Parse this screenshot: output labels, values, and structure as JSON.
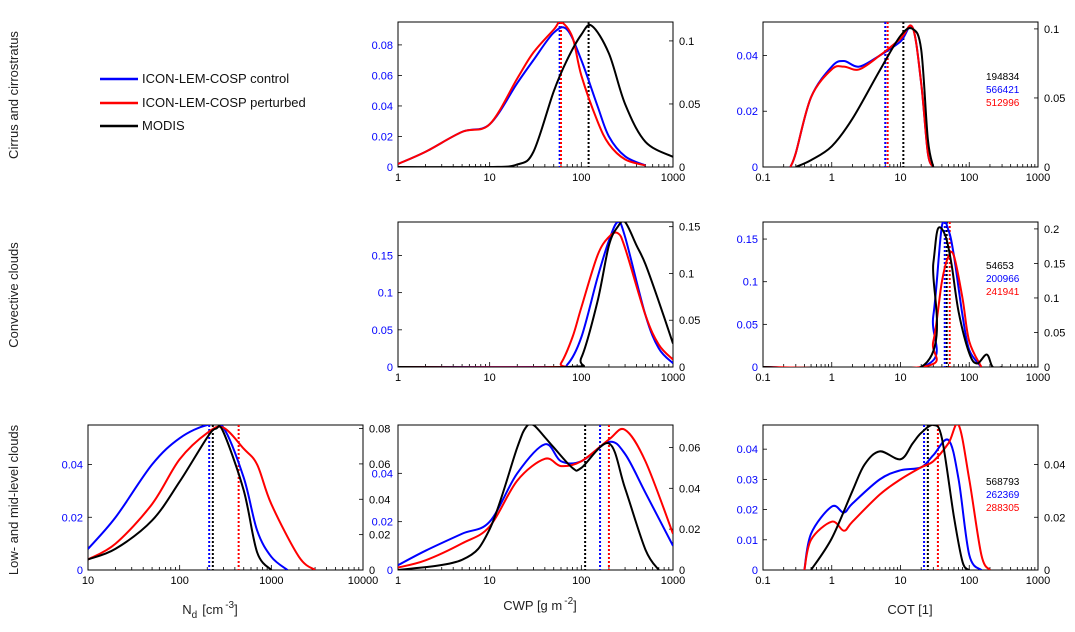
{
  "colors": {
    "control": "#0000ff",
    "perturbed": "#ff0000",
    "modis": "#000000"
  },
  "legend": {
    "placement": "top-left",
    "items": [
      {
        "key": "control",
        "label": "ICON-LEM-COSP control"
      },
      {
        "key": "perturbed",
        "label": "ICON-LEM-COSP perturbed"
      },
      {
        "key": "modis",
        "label": "MODIS"
      }
    ]
  },
  "row_labels": [
    "Cirrus and cirrostratus",
    "Convective clouds",
    "Low- and mid-level clouds"
  ],
  "x_labels": {
    "nd": {
      "main": "N",
      "sub": "d",
      "unit": "[cm",
      "sup": "-3",
      "close": "]"
    },
    "cwp": {
      "main": "CWP [g m",
      "sup": "-2",
      "close": "]"
    },
    "cot": {
      "main": "COT [1]"
    }
  },
  "chart_data": [
    {
      "id": "cirrus-cwp",
      "type": "line",
      "row": 0,
      "col": 1,
      "xscale": "log",
      "xlim": [
        1,
        1000
      ],
      "xticks": [
        1,
        10,
        100,
        1000
      ],
      "ylim_left": [
        0,
        0.095
      ],
      "yticks_left": [
        0,
        0.02,
        0.04,
        0.06,
        0.08
      ],
      "left_tick_color": "#0000ff",
      "ylim_right": [
        0,
        0.115
      ],
      "yticks_right": [
        0,
        0.05,
        0.1
      ],
      "series": [
        {
          "key": "control",
          "axis": "left",
          "x": [
            1,
            2,
            5,
            10,
            20,
            30,
            50,
            70,
            100,
            150,
            200,
            300,
            500
          ],
          "y": [
            0.002,
            0.01,
            0.023,
            0.028,
            0.055,
            0.07,
            0.088,
            0.09,
            0.07,
            0.04,
            0.02,
            0.007,
            0.001
          ]
        },
        {
          "key": "perturbed",
          "axis": "left",
          "x": [
            1,
            2,
            5,
            10,
            20,
            30,
            50,
            60,
            80,
            100,
            150,
            200,
            300,
            500
          ],
          "y": [
            0.002,
            0.01,
            0.023,
            0.028,
            0.058,
            0.075,
            0.09,
            0.095,
            0.085,
            0.06,
            0.03,
            0.015,
            0.005,
            0.001
          ]
        },
        {
          "key": "modis",
          "axis": "right",
          "x": [
            1,
            10,
            20,
            30,
            50,
            70,
            100,
            130,
            200,
            300,
            500,
            1000
          ],
          "y": [
            0,
            0,
            0.002,
            0.012,
            0.06,
            0.085,
            0.105,
            0.112,
            0.09,
            0.05,
            0.02,
            0.008
          ]
        }
      ],
      "medians": {
        "control": 58,
        "perturbed": 60,
        "modis": 120
      }
    },
    {
      "id": "cirrus-cot",
      "type": "line",
      "row": 0,
      "col": 2,
      "xscale": "log",
      "xlim": [
        0.1,
        1000
      ],
      "xticks": [
        0.1,
        1,
        10,
        100,
        1000
      ],
      "ylim_left": [
        0,
        0.052
      ],
      "yticks_left": [
        0,
        0.02,
        0.04
      ],
      "left_tick_color": "#0000ff",
      "ylim_right": [
        0,
        0.105
      ],
      "yticks_right": [
        0,
        0.05,
        0.1
      ],
      "series": [
        {
          "key": "control",
          "axis": "left",
          "x": [
            0.25,
            0.3,
            0.5,
            1,
            1.5,
            2.5,
            5,
            10,
            15,
            20,
            25,
            30
          ],
          "y": [
            0,
            0.005,
            0.025,
            0.036,
            0.038,
            0.036,
            0.04,
            0.045,
            0.05,
            0.03,
            0.005,
            0
          ]
        },
        {
          "key": "perturbed",
          "axis": "left",
          "x": [
            0.25,
            0.3,
            0.5,
            1,
            1.5,
            2.5,
            5,
            10,
            15,
            20,
            25,
            30
          ],
          "y": [
            0,
            0.005,
            0.025,
            0.035,
            0.036,
            0.035,
            0.04,
            0.046,
            0.05,
            0.03,
            0.005,
            0
          ]
        },
        {
          "key": "modis",
          "axis": "right",
          "x": [
            0.3,
            0.5,
            1,
            2,
            5,
            10,
            15,
            20,
            25,
            30
          ],
          "y": [
            0,
            0.005,
            0.015,
            0.035,
            0.07,
            0.095,
            0.1,
            0.085,
            0.02,
            0
          ]
        }
      ],
      "medians": {
        "control": 6,
        "perturbed": 6.5,
        "modis": 11
      },
      "counts": [
        {
          "key": "modis",
          "value": "194834"
        },
        {
          "key": "control",
          "value": "566421"
        },
        {
          "key": "perturbed",
          "value": "512996"
        }
      ]
    },
    {
      "id": "convective-cwp",
      "type": "line",
      "row": 1,
      "col": 1,
      "xscale": "log",
      "xlim": [
        1,
        1000
      ],
      "xticks": [
        1,
        10,
        100,
        1000
      ],
      "ylim_left": [
        0,
        0.195
      ],
      "yticks_left": [
        0,
        0.05,
        0.1,
        0.15
      ],
      "left_tick_color": "#0000ff",
      "ylim_right": [
        0,
        0.155
      ],
      "yticks_right": [
        0,
        0.05,
        0.1,
        0.15
      ],
      "series": [
        {
          "key": "control",
          "axis": "left",
          "x": [
            1,
            50,
            70,
            100,
            150,
            200,
            250,
            300,
            500,
            700,
            1000
          ],
          "y": [
            0,
            0,
            0.003,
            0.04,
            0.12,
            0.17,
            0.195,
            0.175,
            0.07,
            0.025,
            0.005
          ]
        },
        {
          "key": "perturbed",
          "axis": "left",
          "x": [
            1,
            50,
            60,
            80,
            100,
            150,
            200,
            250,
            300,
            500,
            700,
            1000
          ],
          "y": [
            0,
            0,
            0.005,
            0.04,
            0.08,
            0.15,
            0.175,
            0.18,
            0.16,
            0.07,
            0.03,
            0.01
          ]
        },
        {
          "key": "modis",
          "axis": "right",
          "x": [
            1,
            70,
            100,
            150,
            200,
            250,
            300,
            400,
            500,
            700,
            1000
          ],
          "y": [
            0,
            0,
            0.01,
            0.07,
            0.13,
            0.15,
            0.155,
            0.13,
            0.11,
            0.07,
            0.025
          ]
        }
      ],
      "medians": null
    },
    {
      "id": "convective-cot",
      "type": "line",
      "row": 1,
      "col": 2,
      "xscale": "log",
      "xlim": [
        0.1,
        1000
      ],
      "xticks": [
        0.1,
        1,
        10,
        100,
        1000
      ],
      "ylim_left": [
        0,
        0.17
      ],
      "yticks_left": [
        0,
        0.05,
        0.1,
        0.15
      ],
      "left_tick_color": "#0000ff",
      "ylim_right": [
        0,
        0.21
      ],
      "yticks_right": [
        0,
        0.05,
        0.1,
        0.15,
        0.2
      ],
      "series": [
        {
          "key": "control",
          "axis": "left",
          "x": [
            0.1,
            20,
            30,
            40,
            50,
            60,
            80,
            100,
            150
          ],
          "y": [
            0,
            0,
            0.06,
            0.165,
            0.16,
            0.13,
            0.06,
            0.02,
            0
          ]
        },
        {
          "key": "perturbed",
          "axis": "left",
          "x": [
            0.1,
            20,
            30,
            40,
            50,
            60,
            80,
            100,
            150
          ],
          "y": [
            0,
            0,
            0.03,
            0.1,
            0.13,
            0.13,
            0.08,
            0.03,
            0
          ]
        },
        {
          "key": "modis",
          "axis": "right",
          "x": [
            0.1,
            20,
            30,
            35,
            45,
            55,
            70,
            100,
            130,
            180,
            220,
            300
          ],
          "y": [
            0,
            0,
            0.15,
            0.2,
            0.19,
            0.15,
            0.08,
            0.02,
            0.005,
            0.018,
            0,
            0
          ]
        }
      ],
      "medians": {
        "control": 44,
        "perturbed": 52,
        "modis": 47
      },
      "counts": [
        {
          "key": "modis",
          "value": "54653"
        },
        {
          "key": "control",
          "value": "200966"
        },
        {
          "key": "perturbed",
          "value": "241941"
        }
      ]
    },
    {
      "id": "low-nd",
      "type": "line",
      "row": 2,
      "col": 0,
      "xscale": "log",
      "xlim": [
        10,
        10000
      ],
      "xticks": [
        10,
        100,
        1000,
        10000
      ],
      "ylim_left": [
        0,
        0.055
      ],
      "yticks_left": [
        0,
        0.02,
        0.04
      ],
      "left_tick_color": "#0000ff",
      "ylim_right": [
        0,
        0.082
      ],
      "yticks_right": [
        0,
        0.02,
        0.04,
        0.06,
        0.08
      ],
      "series": [
        {
          "key": "control",
          "axis": "left",
          "x": [
            10,
            20,
            50,
            100,
            200,
            300,
            500,
            700,
            1000,
            1500
          ],
          "y": [
            0.008,
            0.02,
            0.04,
            0.05,
            0.055,
            0.054,
            0.035,
            0.015,
            0.005,
            0
          ]
        },
        {
          "key": "perturbed",
          "axis": "left",
          "x": [
            10,
            20,
            50,
            100,
            200,
            300,
            500,
            700,
            1000,
            2000,
            3000
          ],
          "y": [
            0.004,
            0.01,
            0.025,
            0.042,
            0.052,
            0.054,
            0.046,
            0.04,
            0.025,
            0.005,
            0
          ]
        },
        {
          "key": "modis",
          "axis": "right",
          "x": [
            10,
            20,
            50,
            100,
            200,
            250,
            300,
            500,
            700,
            1000
          ],
          "y": [
            0.006,
            0.012,
            0.028,
            0.05,
            0.075,
            0.08,
            0.078,
            0.045,
            0.01,
            0
          ]
        }
      ],
      "medians": {
        "control": 210,
        "perturbed": 440,
        "modis": 230
      }
    },
    {
      "id": "low-cwp",
      "type": "line",
      "row": 2,
      "col": 1,
      "xscale": "log",
      "xlim": [
        1,
        1000
      ],
      "xticks": [
        1,
        10,
        100,
        1000
      ],
      "ylim_left": [
        0,
        0.06
      ],
      "yticks_left": [
        0,
        0.02,
        0.04
      ],
      "left_tick_color": "#0000ff",
      "ylim_right": [
        0,
        0.071
      ],
      "yticks_right": [
        0,
        0.02,
        0.04,
        0.06
      ],
      "series": [
        {
          "key": "control",
          "axis": "left",
          "x": [
            1,
            2,
            5,
            10,
            20,
            40,
            60,
            100,
            200,
            300,
            500,
            1000
          ],
          "y": [
            0.002,
            0.008,
            0.015,
            0.02,
            0.04,
            0.052,
            0.045,
            0.045,
            0.053,
            0.048,
            0.032,
            0.01
          ]
        },
        {
          "key": "perturbed",
          "axis": "left",
          "x": [
            1,
            2,
            5,
            10,
            20,
            40,
            60,
            100,
            200,
            300,
            500,
            1000
          ],
          "y": [
            0.001,
            0.004,
            0.011,
            0.018,
            0.037,
            0.046,
            0.043,
            0.045,
            0.054,
            0.058,
            0.045,
            0.015
          ]
        },
        {
          "key": "modis",
          "axis": "right",
          "x": [
            1,
            5,
            10,
            20,
            25,
            30,
            40,
            50,
            80,
            100,
            200,
            300,
            500,
            700
          ],
          "y": [
            0,
            0.005,
            0.02,
            0.06,
            0.07,
            0.071,
            0.065,
            0.06,
            0.05,
            0.05,
            0.062,
            0.04,
            0.01,
            0
          ]
        }
      ],
      "medians": {
        "control": 160,
        "perturbed": 200,
        "modis": 110
      }
    },
    {
      "id": "low-cot",
      "type": "line",
      "row": 2,
      "col": 2,
      "xscale": "log",
      "xlim": [
        0.1,
        1000
      ],
      "xticks": [
        0.1,
        1,
        10,
        100,
        1000
      ],
      "ylim_left": [
        0,
        0.048
      ],
      "yticks_left": [
        0,
        0.01,
        0.02,
        0.03,
        0.04
      ],
      "left_tick_color": "#0000ff",
      "ylim_right": [
        0,
        0.055
      ],
      "yticks_right": [
        0,
        0.02,
        0.04
      ],
      "series": [
        {
          "key": "control",
          "axis": "left",
          "x": [
            0.4,
            0.5,
            1,
            1.5,
            2,
            5,
            10,
            20,
            30,
            50,
            70,
            100,
            150
          ],
          "y": [
            0,
            0.012,
            0.021,
            0.019,
            0.022,
            0.03,
            0.033,
            0.034,
            0.038,
            0.043,
            0.03,
            0.005,
            0
          ]
        },
        {
          "key": "perturbed",
          "axis": "left",
          "x": [
            0.4,
            0.5,
            1,
            1.5,
            2,
            5,
            10,
            20,
            30,
            50,
            70,
            100,
            150,
            200
          ],
          "y": [
            0,
            0.01,
            0.016,
            0.013,
            0.016,
            0.025,
            0.03,
            0.034,
            0.036,
            0.042,
            0.048,
            0.03,
            0.005,
            0
          ]
        },
        {
          "key": "modis",
          "axis": "right",
          "x": [
            0.5,
            1,
            2,
            3,
            5,
            10,
            15,
            20,
            30,
            40,
            60,
            80,
            100
          ],
          "y": [
            0,
            0.012,
            0.03,
            0.04,
            0.045,
            0.042,
            0.048,
            0.052,
            0.055,
            0.05,
            0.02,
            0.003,
            0
          ]
        }
      ],
      "medians": {
        "control": 22,
        "perturbed": 35,
        "modis": 25
      },
      "counts": [
        {
          "key": "modis",
          "value": "568793"
        },
        {
          "key": "control",
          "value": "262369"
        },
        {
          "key": "perturbed",
          "value": "288305"
        }
      ]
    }
  ]
}
